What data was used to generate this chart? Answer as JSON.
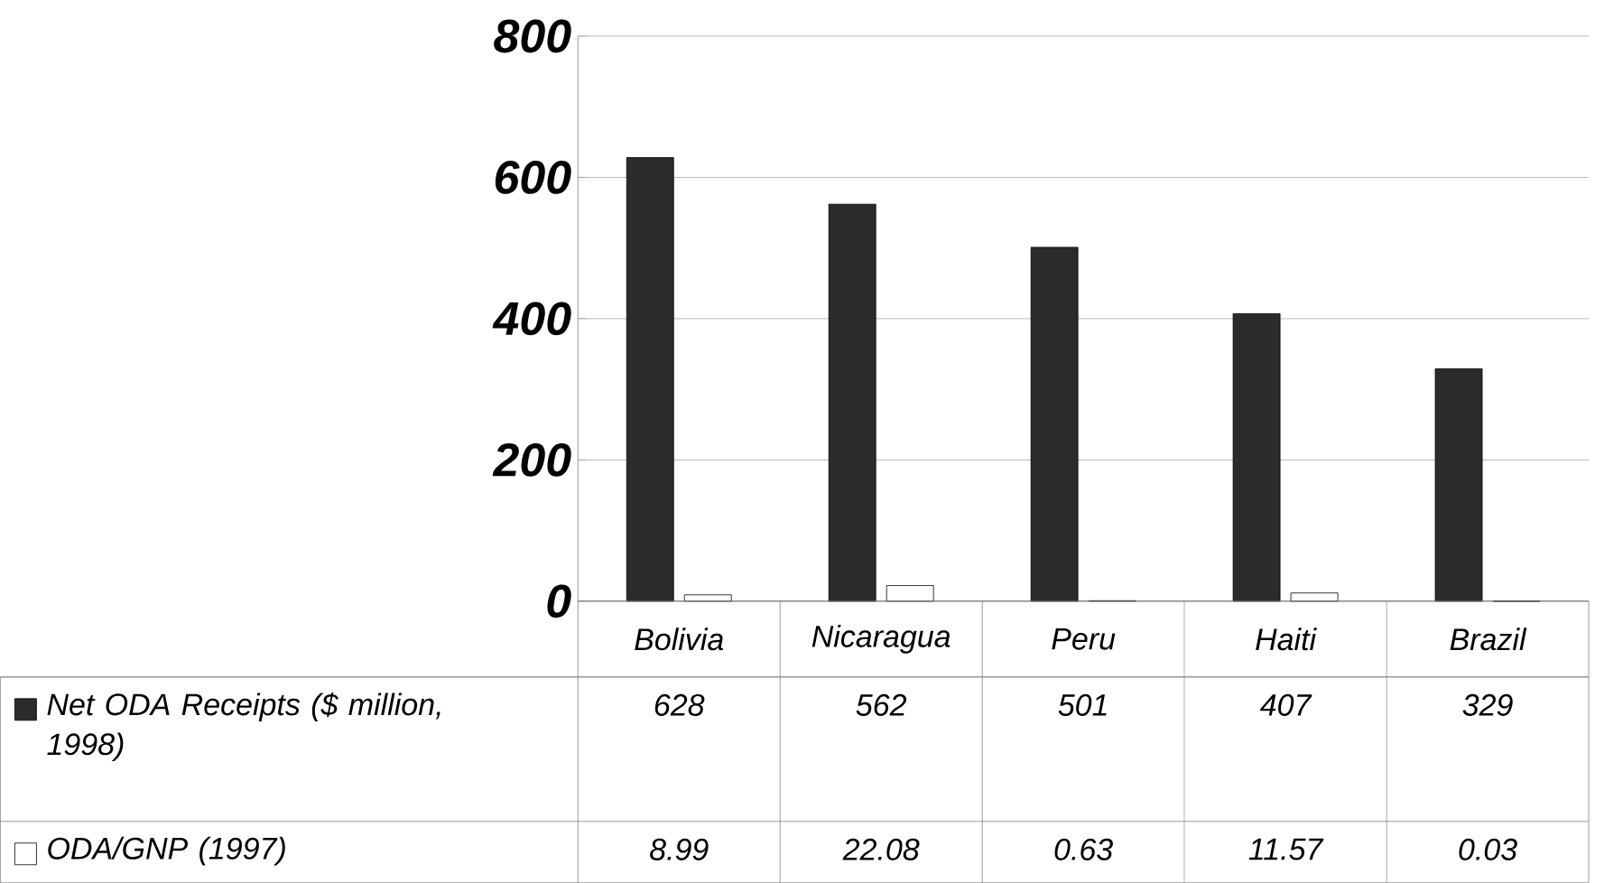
{
  "chart_data": {
    "type": "bar",
    "categories": [
      "Bolivia",
      "Nicaragua",
      "Peru",
      "Haiti",
      "Brazil"
    ],
    "series": [
      {
        "name": "Net ODA Receipts ($ million, 1998)",
        "color": "#2b2b2b",
        "values": [
          628,
          562,
          501,
          407,
          329
        ]
      },
      {
        "name": "ODA/GNP (1997)",
        "color": "#ffffff",
        "values": [
          8.99,
          22.08,
          0.63,
          11.57,
          0.03
        ]
      }
    ],
    "ylim": [
      0,
      800
    ],
    "yticks": [
      0,
      200,
      400,
      600,
      800
    ],
    "grid": "y",
    "data_labels": true,
    "legend": "bottom left"
  }
}
